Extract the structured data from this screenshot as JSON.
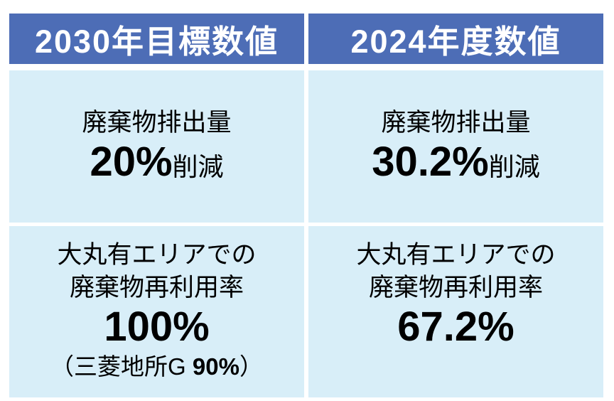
{
  "colors": {
    "header_bg": "#4D6DB6",
    "header_text": "#FFFFFF",
    "cell_bg": "#D8EEF8",
    "text": "#000000",
    "page_bg": "#FFFFFF"
  },
  "headers": {
    "target": "2030年目標数値",
    "actual": "2024年度数値"
  },
  "cells": {
    "target_waste": {
      "label": "廃棄物排出量",
      "value": "20%",
      "suffix": "削減"
    },
    "actual_waste": {
      "label": "廃棄物排出量",
      "value": "30.2%",
      "suffix": "削減"
    },
    "target_reuse": {
      "line1": "大丸有エリアでの",
      "line2": "廃棄物再利用率",
      "value": "100%",
      "note_prefix": "（三菱地所G ",
      "note_bold": "90%",
      "note_suffix": "）"
    },
    "actual_reuse": {
      "line1": "大丸有エリアでの",
      "line2": "廃棄物再利用率",
      "value": "67.2%"
    }
  },
  "chart_data": {
    "type": "table",
    "columns": [
      "2030年目標数値",
      "2024年度数値"
    ],
    "rows": [
      {
        "metric": "廃棄物排出量",
        "target_2030": "20%削減",
        "actual_2024": "30.2%削減"
      },
      {
        "metric": "大丸有エリアでの廃棄物再利用率",
        "target_2030": "100%（三菱地所G 90%）",
        "actual_2024": "67.2%"
      }
    ]
  }
}
